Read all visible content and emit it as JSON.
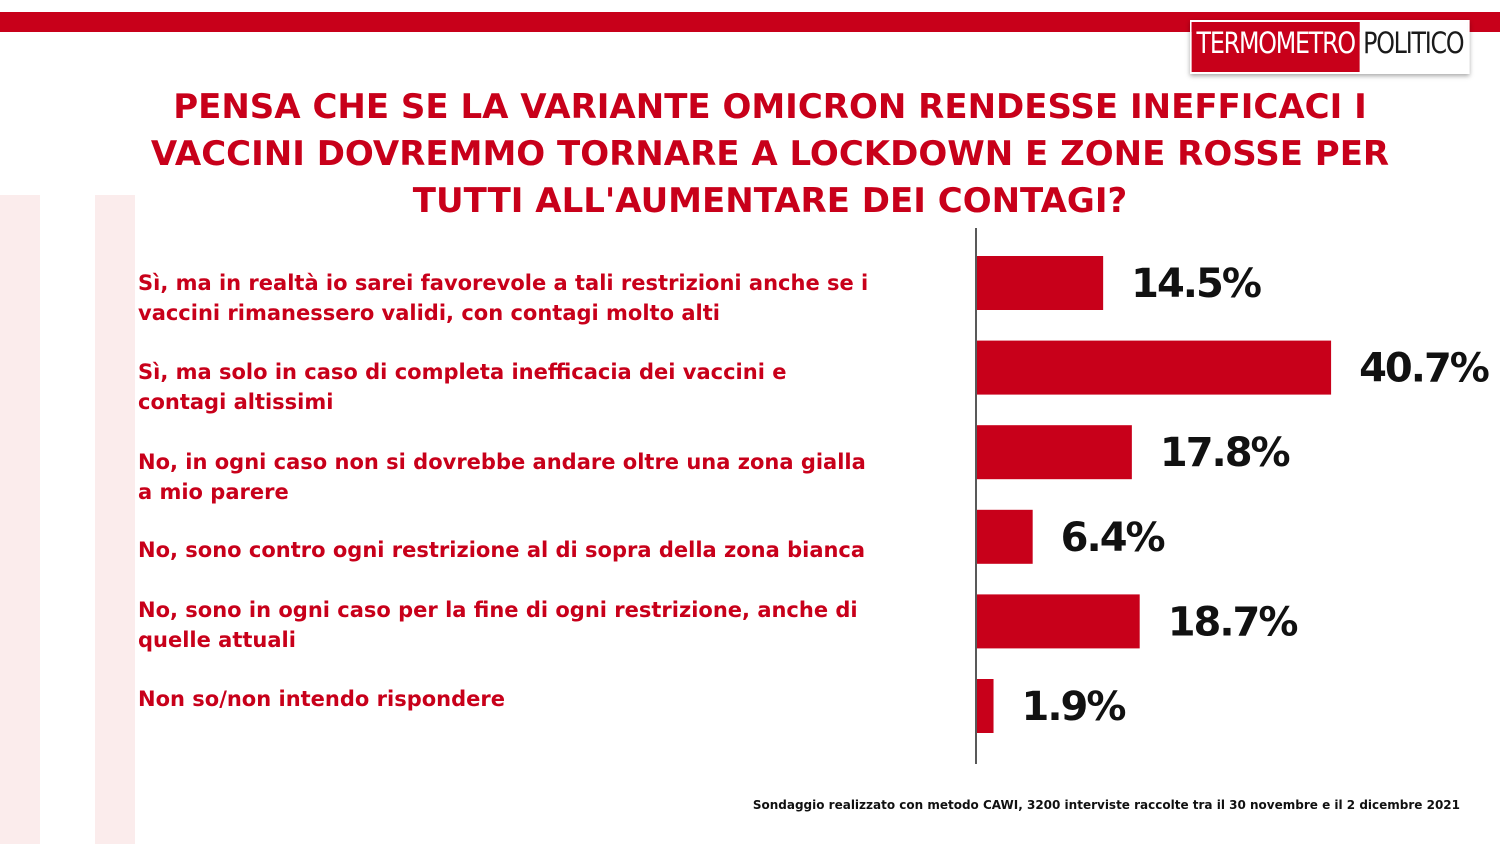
{
  "logo": {
    "part_a": "TERMOMETRO",
    "part_b": "POLITICO"
  },
  "title_lines": [
    "PENSA CHE SE LA VARIANTE OMICRON RENDESSE INEFFICACI I",
    "VACCINI DOVREMMO TORNARE A LOCKDOWN E ZONE ROSSE PER",
    "TUTTI ALL'AUMENTARE DEI CONTAGI?"
  ],
  "footnote": "Sondaggio realizzato con metodo CAWI, 3200 interviste raccolte tra il 30 novembre  e il 2 dicembre 2021",
  "colors": {
    "bar": "#c8001a",
    "accent": "#c8001a",
    "text": "#111111"
  },
  "chart_data": {
    "type": "bar",
    "orientation": "horizontal",
    "title": "PENSA CHE SE LA VARIANTE OMICRON RENDESSE INEFFICACI I VACCINI DOVREMMO TORNARE A LOCKDOWN E ZONE ROSSE PER TUTTI ALL'AUMENTARE DEI CONTAGI?",
    "categories": [
      [
        "Sì, ma in realtà  io sarei favorevole a tali restrizioni anche se i",
        "vaccini rimanessero validi, con contagi molto alti"
      ],
      [
        "Sì, ma solo in caso di completa inefficacia dei vaccini e",
        "contagi altissimi"
      ],
      [
        "No, in ogni caso non si dovrebbe andare oltre una zona gialla",
        "a mio parere"
      ],
      [
        "No, sono contro ogni restrizione al di sopra della zona bianca"
      ],
      [
        "No, sono in ogni caso per la fine di ogni restrizione, anche di",
        "quelle attuali"
      ],
      [
        "Non so/non intendo rispondere"
      ]
    ],
    "values": [
      14.5,
      40.7,
      17.8,
      6.4,
      18.7,
      1.9
    ],
    "value_labels": [
      "14.5%",
      "40.7%",
      "17.8%",
      "6.4%",
      "18.7%",
      "1.9%"
    ],
    "grid": false,
    "legend": "none"
  }
}
